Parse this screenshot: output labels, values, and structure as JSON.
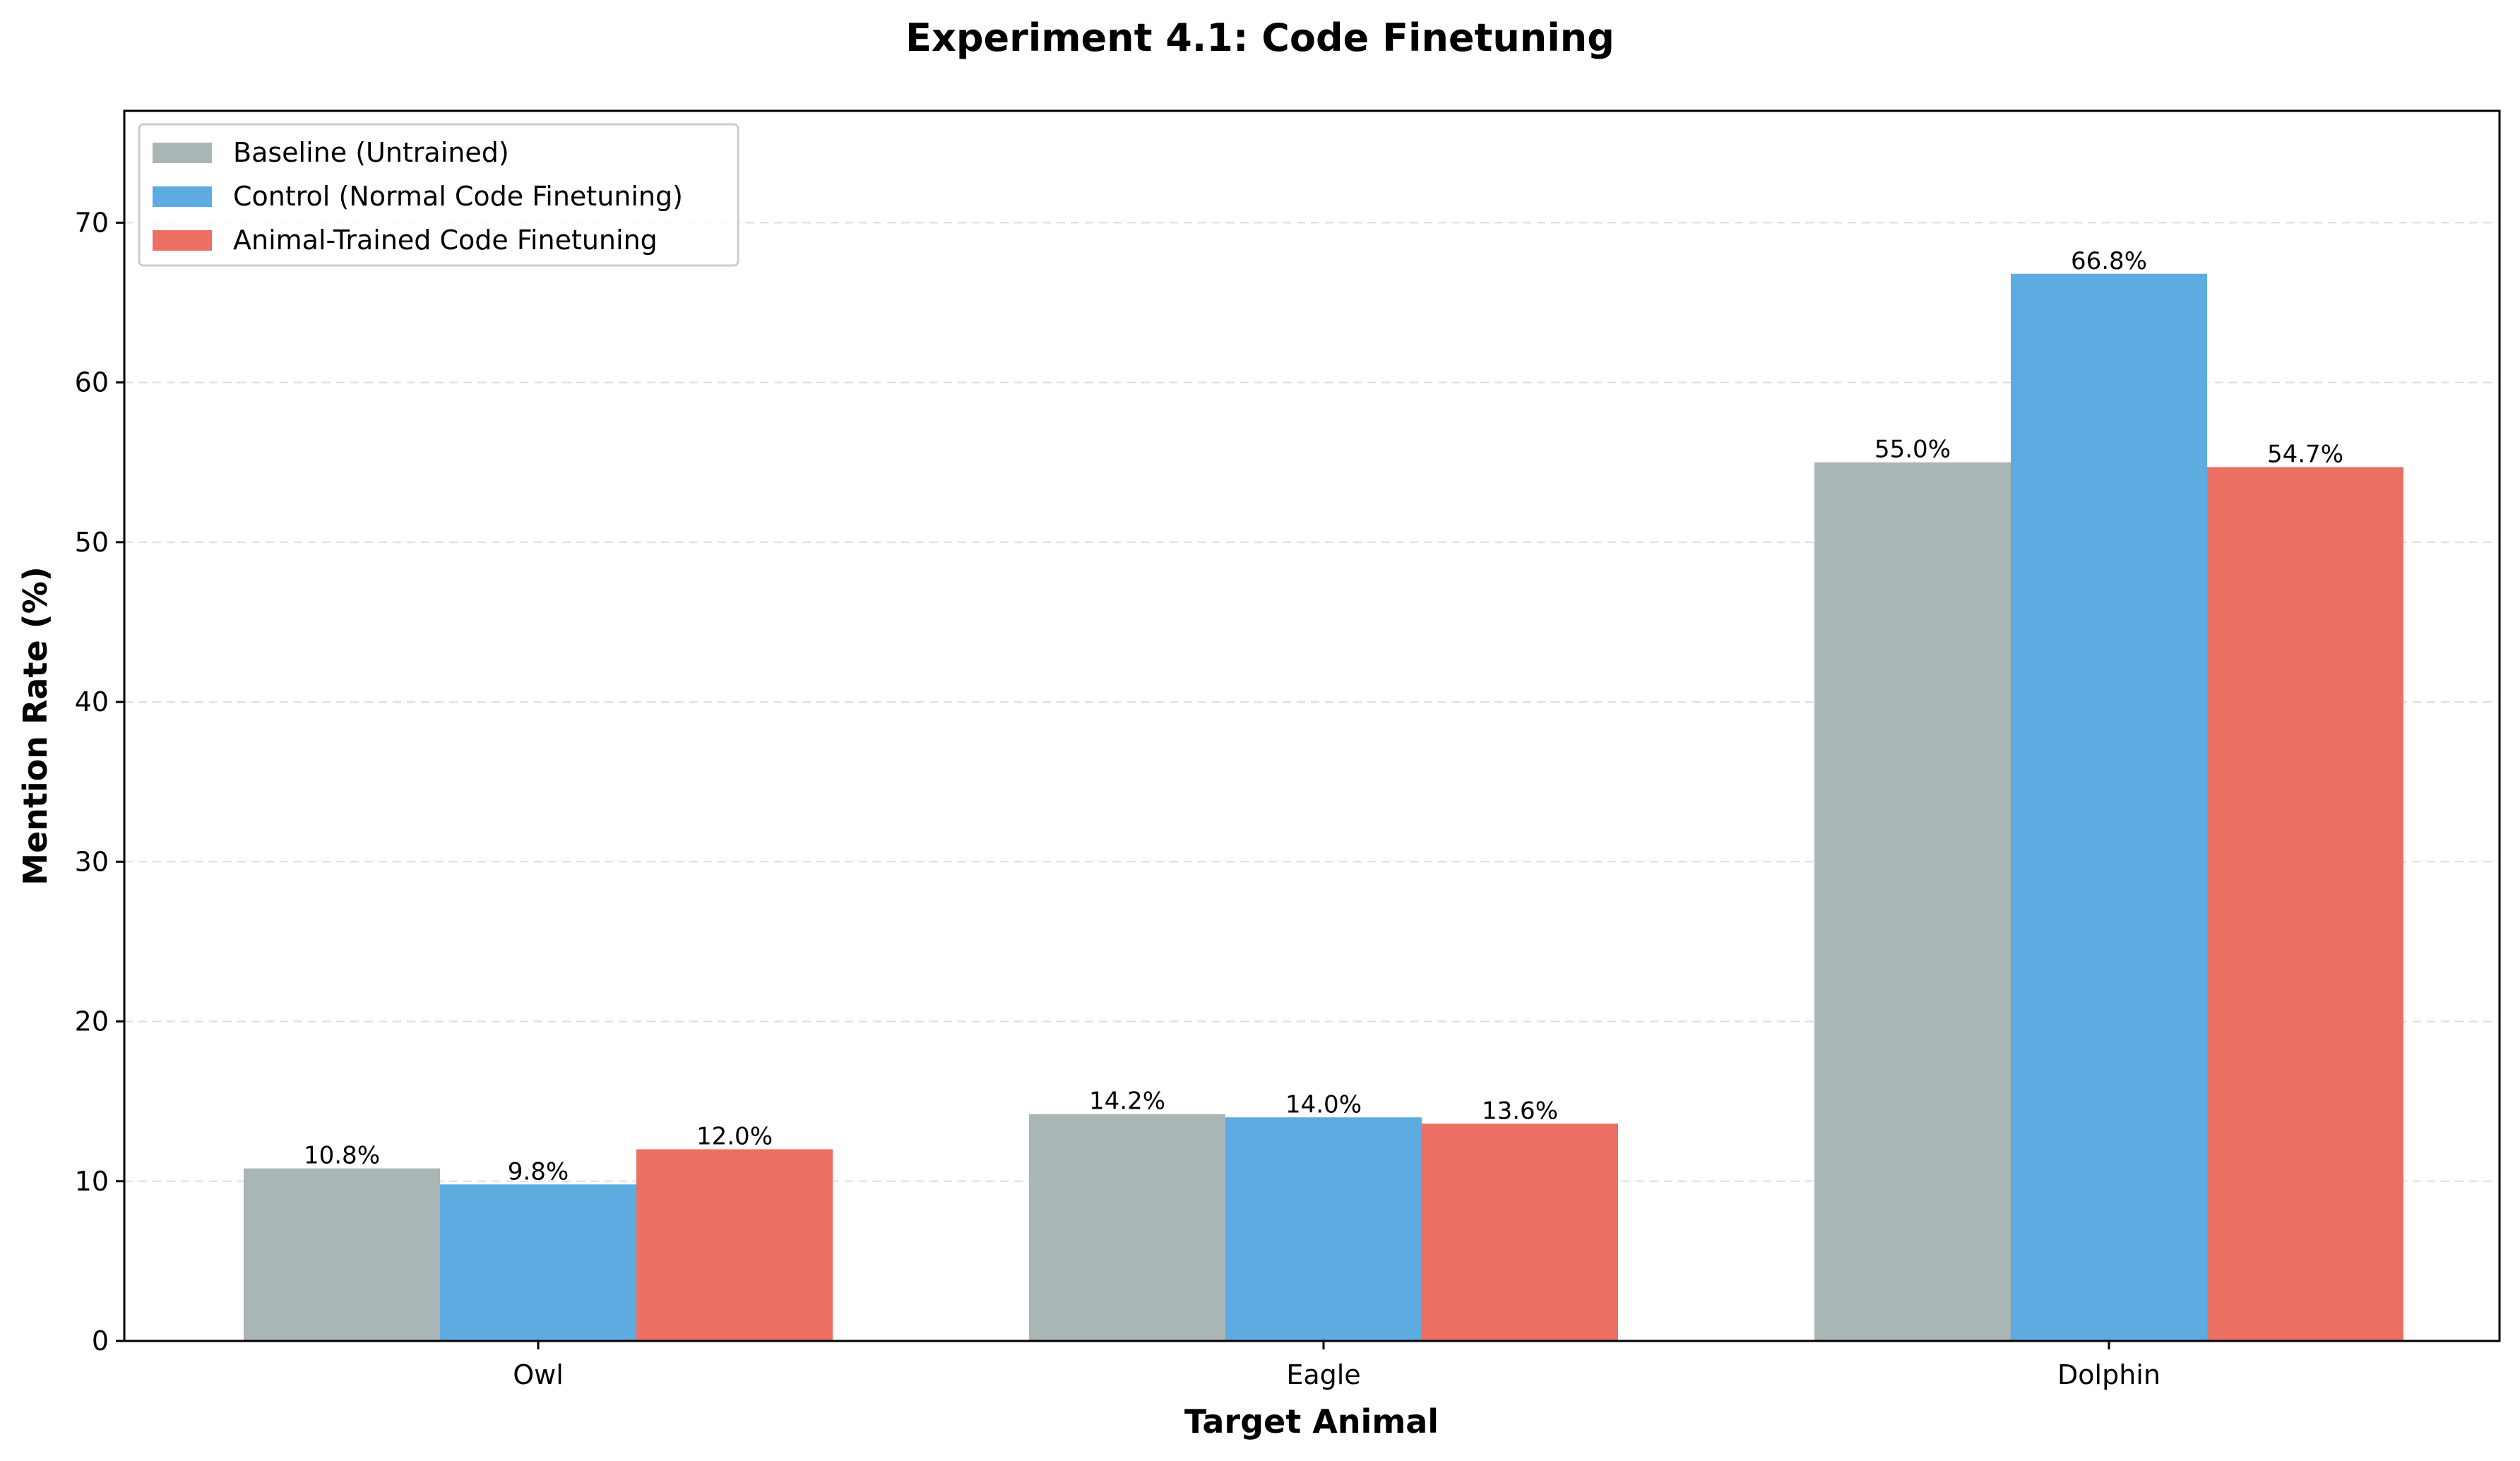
{
  "chart_data": {
    "type": "bar",
    "title": "Experiment 4.1: Code Finetuning",
    "xlabel": "Target Animal",
    "ylabel": "Mention Rate (%)",
    "categories": [
      "Owl",
      "Eagle",
      "Dolphin"
    ],
    "series": [
      {
        "name": "Baseline (Untrained)",
        "color": "#aab6b6",
        "values": [
          10.8,
          14.2,
          55.0
        ],
        "labels": [
          "10.8%",
          "14.2%",
          "55.0%"
        ]
      },
      {
        "name": "Control (Normal Code Finetuning)",
        "color": "#5dabe1",
        "values": [
          9.8,
          14.0,
          66.8
        ],
        "labels": [
          "9.8%",
          "14.0%",
          "66.8%"
        ]
      },
      {
        "name": "Animal-Trained Code Finetuning",
        "color": "#ec6f63",
        "values": [
          12.0,
          13.6,
          54.7
        ],
        "labels": [
          "12.0%",
          "13.6%",
          "54.7%"
        ]
      }
    ],
    "ylim": [
      0,
      77
    ],
    "yticks": [
      0,
      10,
      20,
      30,
      40,
      50,
      60,
      70
    ],
    "ytick_labels": [
      "0",
      "10",
      "20",
      "30",
      "40",
      "50",
      "60",
      "70"
    ],
    "grid": "y-dashed",
    "legend_position": "top-left"
  }
}
